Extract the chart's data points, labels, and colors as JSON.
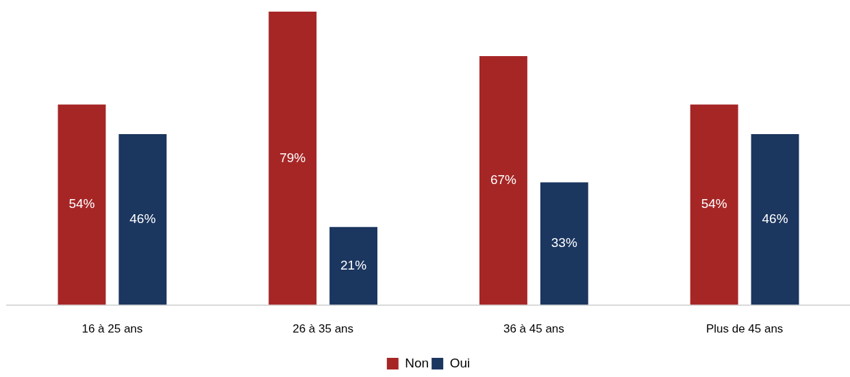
{
  "chart_data": {
    "type": "bar",
    "categories": [
      "16 à 25 ans",
      "26 à 35 ans",
      "36 à 45 ans",
      "Plus de 45 ans"
    ],
    "series": [
      {
        "name": "Non",
        "color": "#a62626",
        "values": [
          54,
          79,
          67,
          54
        ],
        "value_labels": [
          "54%",
          "79%",
          "67%",
          "54%"
        ]
      },
      {
        "name": "Oui",
        "color": "#1b365f",
        "values": [
          46,
          21,
          33,
          46
        ],
        "value_labels": [
          "46%",
          "21%",
          "33%",
          "46%"
        ]
      }
    ],
    "legend": "bottom"
  }
}
